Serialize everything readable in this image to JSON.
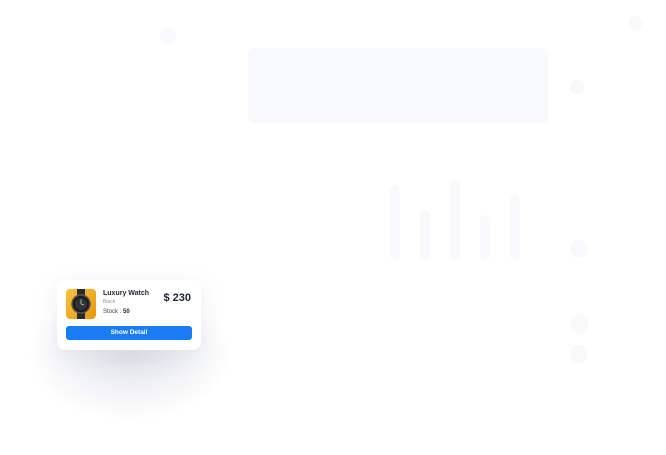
{
  "product": {
    "name": "Luxury Watch",
    "variant": "Black",
    "stock_label": "Stock :",
    "stock": 50,
    "price": "$ 230",
    "button": "Show Detail"
  }
}
